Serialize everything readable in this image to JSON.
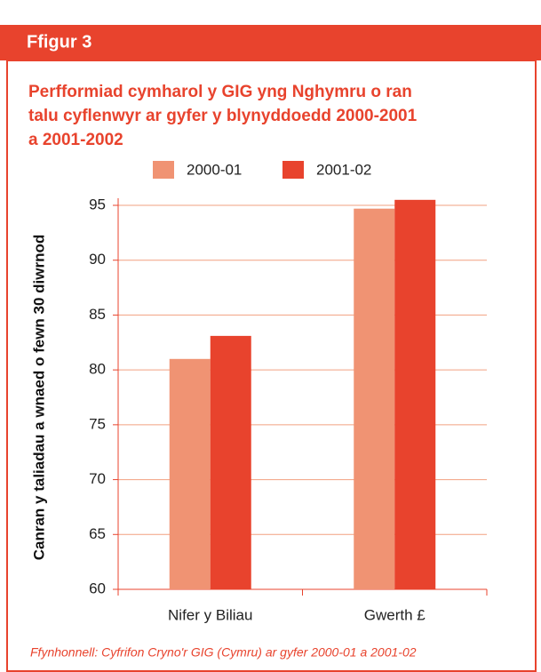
{
  "header": "Ffigur 3",
  "chart_data": {
    "type": "bar",
    "title": [
      "Perfformiad cymharol y GIG yng Nghymru o ran",
      "talu cyflenwyr ar gyfer y blynyddoedd 2000-2001",
      "a 2001-2002"
    ],
    "y_label": "Canran y taliadau a wnaed o fewn 30 diwrnod",
    "categories": [
      "Nifer y Biliau",
      "Gwerth £"
    ],
    "series": [
      {
        "name": "2000-01",
        "color": "#f09373",
        "values": [
          81,
          94.7
        ]
      },
      {
        "name": "2001-02",
        "color": "#e8432d",
        "values": [
          83.1,
          95.5
        ]
      }
    ],
    "ylim": [
      60,
      95
    ],
    "yticks": [
      60,
      65,
      70,
      75,
      80,
      85,
      90,
      95
    ],
    "grid": true,
    "source": "Ffynhonnell: Cyfrifon Cryno'r GIG (Cymru) ar gyfer 2000-01 a 2001-02"
  }
}
